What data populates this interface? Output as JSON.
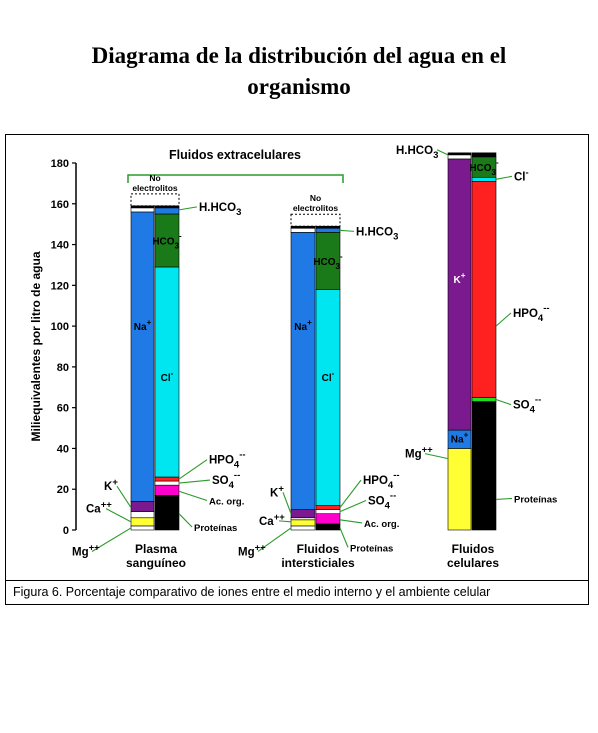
{
  "page": {
    "title_line1": "Diagrama de la distribución del agua en el",
    "title_line2": "organismo",
    "caption": "Figura 6. Porcentaje comparativo de iones entre el medio interno y el ambiente celular"
  },
  "chart_data": {
    "type": "bar",
    "subtype": "stacked",
    "ylabel": "Miliequivalentes por litro de agua",
    "ylim": [
      0,
      180
    ],
    "yticks": [
      0,
      20,
      40,
      60,
      80,
      100,
      120,
      140,
      160,
      180
    ],
    "grid": false,
    "group_label": "Fluidos extracelulares",
    "no_electrolitos_label": "No electrolitos",
    "stacks": [
      {
        "key": "plasma_cations",
        "category": "Plasma sanguíneo",
        "segments": [
          {
            "label": "Mg++",
            "from": 0,
            "to": 2,
            "color": "#ffffff"
          },
          {
            "label": "Ca++",
            "from": 2,
            "to": 6,
            "color": "#ffff33"
          },
          {
            "label": "K+",
            "from": 6,
            "to": 9,
            "color": "#ffffff"
          },
          {
            "label": "",
            "from": 9,
            "to": 14,
            "color": "#7a1a8e"
          },
          {
            "label": "Na+",
            "from": 14,
            "to": 156,
            "color": "#1f7ae6"
          },
          {
            "label": "",
            "from": 156,
            "to": 158,
            "color": "#ffffff"
          },
          {
            "label": "",
            "from": 158,
            "to": 159,
            "color": "#000000"
          }
        ]
      },
      {
        "key": "plasma_anions",
        "category": "Plasma sanguíneo",
        "segments": [
          {
            "label": "Proteínas",
            "from": 0,
            "to": 17,
            "color": "#000000"
          },
          {
            "label": "Ac. org.",
            "from": 17,
            "to": 22,
            "color": "#ff00cc"
          },
          {
            "label": "SO4--",
            "from": 22,
            "to": 24,
            "color": "#ffffff"
          },
          {
            "label": "HPO4--",
            "from": 24,
            "to": 26,
            "color": "#ff2020"
          },
          {
            "label": "Cl-",
            "from": 26,
            "to": 129,
            "color": "#00e6f0"
          },
          {
            "label": "HCO3-",
            "from": 129,
            "to": 155,
            "color": "#1a7a1a"
          },
          {
            "label": "H.HCO3",
            "from": 155,
            "to": 158,
            "color": "#1f7ae6"
          },
          {
            "label": "",
            "from": 158,
            "to": 159,
            "color": "#000000"
          }
        ]
      },
      {
        "key": "intersticial_cations",
        "category": "Fluidos intersticiales",
        "segments": [
          {
            "label": "Mg++",
            "from": 0,
            "to": 2,
            "color": "#ffffff"
          },
          {
            "label": "Ca++",
            "from": 2,
            "to": 5,
            "color": "#ffff33"
          },
          {
            "label": "K+",
            "from": 5,
            "to": 6,
            "color": "#ffffff"
          },
          {
            "label": "",
            "from": 6,
            "to": 10,
            "color": "#7a1a8e"
          },
          {
            "label": "Na+",
            "from": 10,
            "to": 146,
            "color": "#1f7ae6"
          },
          {
            "label": "",
            "from": 146,
            "to": 148,
            "color": "#ffffff"
          },
          {
            "label": "",
            "from": 148,
            "to": 149,
            "color": "#000000"
          }
        ]
      },
      {
        "key": "intersticial_anions",
        "category": "Fluidos intersticiales",
        "segments": [
          {
            "label": "Proteínas",
            "from": 0,
            "to": 3,
            "color": "#000000"
          },
          {
            "label": "Ac. org.",
            "from": 3,
            "to": 8,
            "color": "#ff00cc"
          },
          {
            "label": "SO4--",
            "from": 8,
            "to": 10,
            "color": "#ffffff"
          },
          {
            "label": "HPO4--",
            "from": 10,
            "to": 12,
            "color": "#ff2020"
          },
          {
            "label": "Cl-",
            "from": 12,
            "to": 118,
            "color": "#00e6f0"
          },
          {
            "label": "HCO3-",
            "from": 118,
            "to": 146,
            "color": "#1a7a1a"
          },
          {
            "label": "H.HCO3",
            "from": 146,
            "to": 148,
            "color": "#1f7ae6"
          },
          {
            "label": "",
            "from": 148,
            "to": 149,
            "color": "#000000"
          }
        ]
      },
      {
        "key": "celular_cations",
        "category": "Fluidos celulares",
        "segments": [
          {
            "label": "Mg++",
            "from": 0,
            "to": 40,
            "color": "#ffff33"
          },
          {
            "label": "Na+",
            "from": 40,
            "to": 49,
            "color": "#1f7ae6"
          },
          {
            "label": "K+",
            "from": 49,
            "to": 182,
            "color": "#7a1a8e"
          },
          {
            "label": "",
            "from": 182,
            "to": 184,
            "color": "#ffffff"
          },
          {
            "label": "H.HCO3",
            "from": 184,
            "to": 185,
            "color": "#000000"
          }
        ]
      },
      {
        "key": "celular_anions",
        "category": "Fluidos celulares",
        "segments": [
          {
            "label": "Proteínas",
            "from": 0,
            "to": 63,
            "color": "#000000"
          },
          {
            "label": "SO4--",
            "from": 63,
            "to": 65,
            "color": "#22dd22"
          },
          {
            "label": "HPO4--",
            "from": 65,
            "to": 171,
            "color": "#ff2020"
          },
          {
            "label": "Cl-",
            "from": 171,
            "to": 173,
            "color": "#00e6f0"
          },
          {
            "label": "HCO3-",
            "from": 173,
            "to": 183,
            "color": "#1a7a1a"
          },
          {
            "label": "",
            "from": 183,
            "to": 185,
            "color": "#000000"
          }
        ]
      }
    ],
    "categories": [
      {
        "line1": "Plasma",
        "line2": "sanguíneo"
      },
      {
        "line1": "Fluidos",
        "line2": "intersticiales"
      },
      {
        "line1": "Fluidos",
        "line2": "celulares"
      }
    ],
    "in_bar_labels": [
      {
        "stack": "plasma_cations",
        "y": 100,
        "text": "Na",
        "sup": "+",
        "color": "#000000"
      },
      {
        "stack": "plasma_anions",
        "y": 75,
        "text": "Cl",
        "sup": "-",
        "color": "#000000"
      },
      {
        "stack": "plasma_anions",
        "y": 142,
        "text": "HCO",
        "sub": "3",
        "sup": "-",
        "color": "#000000"
      },
      {
        "stack": "intersticial_cations",
        "y": 100,
        "text": "Na",
        "sup": "+",
        "color": "#000000"
      },
      {
        "stack": "intersticial_anions",
        "y": 75,
        "text": "Cl",
        "sup": "-",
        "color": "#000000"
      },
      {
        "stack": "intersticial_anions",
        "y": 132,
        "text": "HCO",
        "sub": "3",
        "sup": "-",
        "color": "#000000"
      },
      {
        "stack": "celular_cations",
        "y": 123,
        "text": "K",
        "sup": "+",
        "color": "#ffffff"
      },
      {
        "stack": "celular_cations",
        "y": 45,
        "text": "Na",
        "sup": "+",
        "color": "#000000"
      },
      {
        "stack": "celular_anions",
        "y": 178,
        "text": "HCO",
        "sub": "3",
        "sup": "-",
        "color": "#000000"
      }
    ],
    "annotations": [
      {
        "text": "H.HCO",
        "sub": "3",
        "value": 157,
        "stack": "plasma_anions",
        "anchor": "right"
      },
      {
        "text": "HPO",
        "sub": "4",
        "sup": "--",
        "value": 25,
        "stack": "plasma_anions",
        "anchor": "right"
      },
      {
        "text": "SO",
        "sub": "4",
        "sup": "--",
        "value": 23,
        "stack": "plasma_anions",
        "anchor": "right"
      },
      {
        "text": "Ac. org.",
        "value": 19,
        "stack": "plasma_anions",
        "anchor": "right"
      },
      {
        "text": "Proteínas",
        "value": 8,
        "stack": "plasma_anions",
        "anchor": "right"
      },
      {
        "text": "K",
        "sup": "+",
        "value": 11,
        "stack": "plasma_cations",
        "anchor": "left"
      },
      {
        "text": "Ca",
        "sup": "++",
        "value": 4,
        "stack": "plasma_cations",
        "anchor": "left"
      },
      {
        "text": "Mg",
        "sup": "++",
        "value": 1,
        "stack": "plasma_cations",
        "anchor": "left"
      },
      {
        "text": "H.HCO",
        "sub": "3",
        "value": 147,
        "stack": "intersticial_anions",
        "anchor": "right"
      },
      {
        "text": "HPO",
        "sub": "4",
        "sup": "--",
        "value": 11,
        "stack": "intersticial_anions",
        "anchor": "right"
      },
      {
        "text": "SO",
        "sub": "4",
        "sup": "--",
        "value": 9,
        "stack": "intersticial_anions",
        "anchor": "right"
      },
      {
        "text": "Ac. org.",
        "value": 5,
        "stack": "intersticial_anions",
        "anchor": "right"
      },
      {
        "text": "Proteínas",
        "value": 1,
        "stack": "intersticial_anions",
        "anchor": "right"
      },
      {
        "text": "K",
        "sup": "+",
        "value": 8,
        "stack": "intersticial_cations",
        "anchor": "left"
      },
      {
        "text": "Ca",
        "sup": "++",
        "value": 4,
        "stack": "intersticial_cations",
        "anchor": "left"
      },
      {
        "text": "Mg",
        "sup": "++",
        "value": 1,
        "stack": "intersticial_cations",
        "anchor": "left"
      },
      {
        "text": "H.HCO",
        "sub": "3",
        "value": 184,
        "stack": "celular_cations",
        "anchor": "left"
      },
      {
        "text": "Cl",
        "sup": "-",
        "value": 172,
        "stack": "celular_anions",
        "anchor": "right"
      },
      {
        "text": "HPO",
        "sub": "4",
        "sup": "--",
        "value": 100,
        "stack": "celular_anions",
        "anchor": "right"
      },
      {
        "text": "SO",
        "sub": "4",
        "sup": "--",
        "value": 64,
        "stack": "celular_anions",
        "anchor": "right"
      },
      {
        "text": "Mg",
        "sup": "++",
        "value": 35,
        "stack": "celular_cations",
        "anchor": "left"
      },
      {
        "text": "Proteínas",
        "value": 15,
        "stack": "celular_anions",
        "anchor": "right"
      }
    ]
  }
}
